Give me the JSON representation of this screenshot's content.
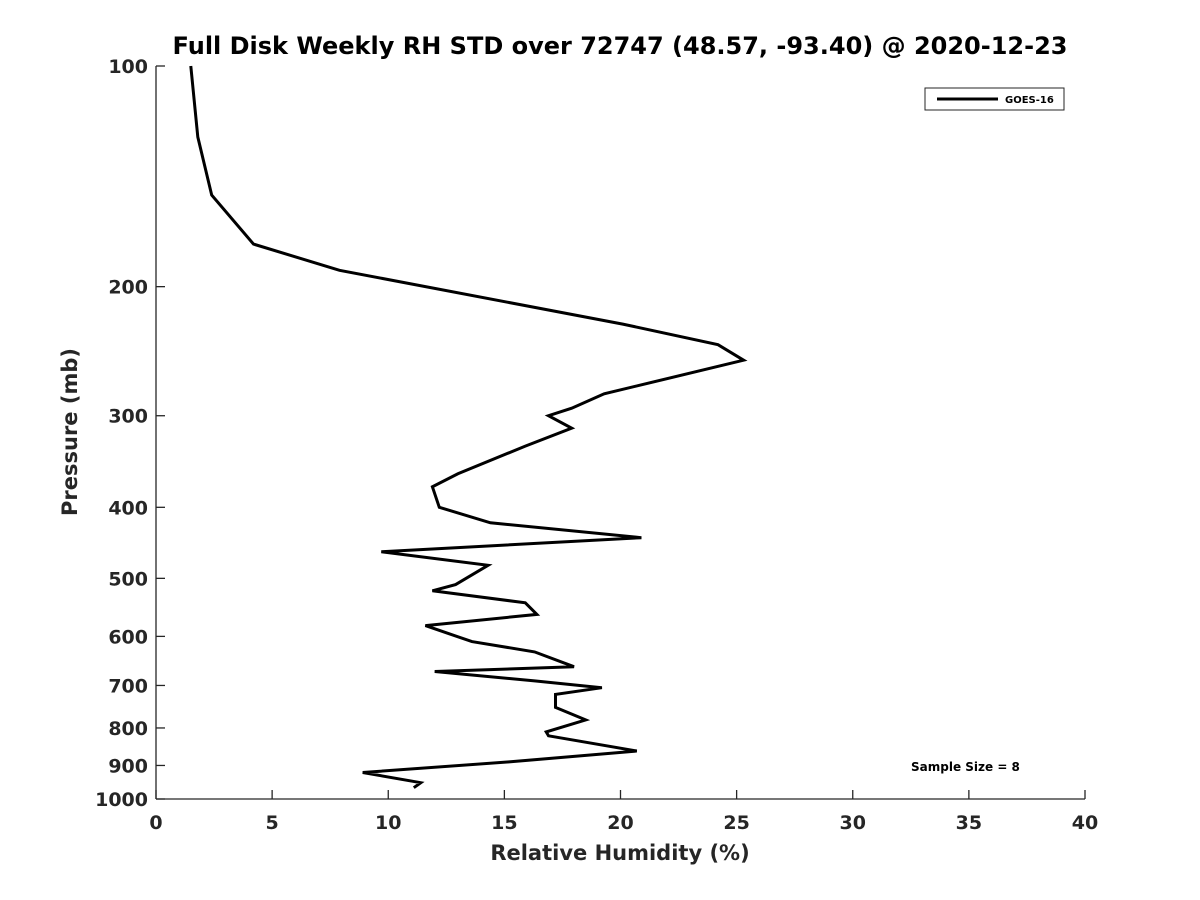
{
  "chart_data": {
    "type": "line",
    "title": "Full Disk Weekly RH STD over 72747 (48.57, -93.40) @ 2020-12-23",
    "xlabel": "Relative Humidity (%)",
    "ylabel": "Pressure (mb)",
    "xlim": [
      0,
      40
    ],
    "ylim": [
      100,
      1000
    ],
    "y_scale": "log",
    "y_reversed": true,
    "x_ticks": [
      0,
      5,
      10,
      15,
      20,
      25,
      30,
      35,
      40
    ],
    "y_ticks": [
      100,
      200,
      300,
      400,
      500,
      600,
      700,
      800,
      900,
      1000
    ],
    "grid": false,
    "legend_position": "top-right",
    "annotation": "Sample Size = 8",
    "series": [
      {
        "name": "GOES-16",
        "color": "#000000",
        "points": [
          [
            1.5,
            100
          ],
          [
            1.8,
            125
          ],
          [
            2.4,
            150
          ],
          [
            4.2,
            175
          ],
          [
            7.9,
            190
          ],
          [
            20.1,
            225
          ],
          [
            24.2,
            240
          ],
          [
            25.3,
            252
          ],
          [
            19.3,
            280
          ],
          [
            17.9,
            293
          ],
          [
            16.9,
            300
          ],
          [
            17.9,
            312
          ],
          [
            15.9,
            330
          ],
          [
            13.0,
            360
          ],
          [
            11.9,
            375
          ],
          [
            12.2,
            400
          ],
          [
            14.4,
            420
          ],
          [
            20.9,
            440
          ],
          [
            9.7,
            460
          ],
          [
            14.3,
            480
          ],
          [
            12.9,
            510
          ],
          [
            11.9,
            520
          ],
          [
            15.9,
            540
          ],
          [
            16.4,
            560
          ],
          [
            11.6,
            580
          ],
          [
            13.6,
            610
          ],
          [
            16.3,
            630
          ],
          [
            18.0,
            660
          ],
          [
            12.0,
            670
          ],
          [
            16.3,
            690
          ],
          [
            19.2,
            705
          ],
          [
            17.2,
            720
          ],
          [
            17.2,
            750
          ],
          [
            18.5,
            780
          ],
          [
            16.8,
            810
          ],
          [
            16.9,
            820
          ],
          [
            20.7,
            860
          ],
          [
            15.2,
            890
          ],
          [
            8.9,
            920
          ],
          [
            11.4,
            950
          ],
          [
            11.1,
            965
          ]
        ]
      }
    ]
  }
}
